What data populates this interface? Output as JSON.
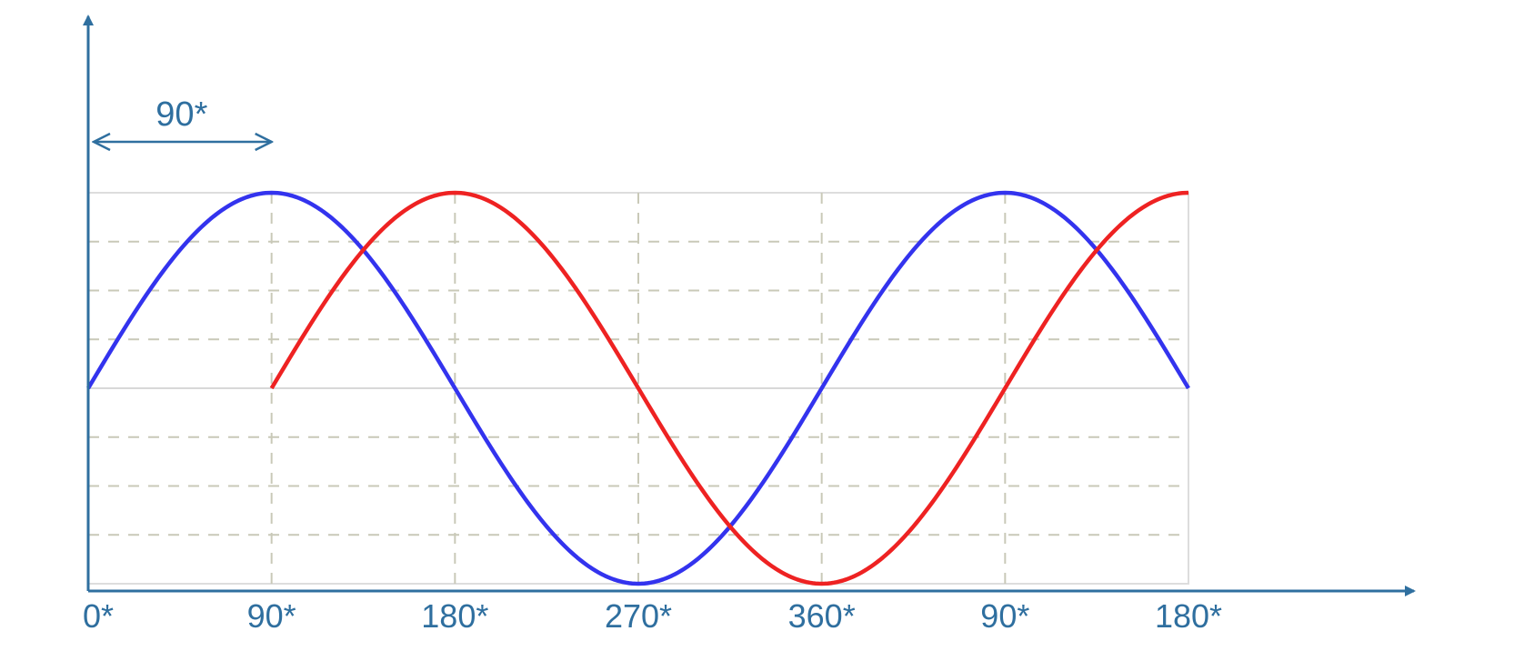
{
  "chart_data": {
    "type": "line",
    "title": "",
    "xlabel": "",
    "ylabel": "",
    "x_unit": "degrees",
    "x_tick_labels": [
      "0*",
      "90*",
      "180*",
      "270*",
      "360*",
      "90*",
      "180*"
    ],
    "xlim": [
      0,
      540
    ],
    "ylim": [
      -1,
      1
    ],
    "grid": true,
    "legend": "none",
    "series": [
      {
        "color": "#3333ee",
        "x_range": [
          0,
          540
        ],
        "values": [
          {
            "x": 0,
            "y": 0
          },
          {
            "x": 90,
            "y": 1
          },
          {
            "x": 180,
            "y": 0
          },
          {
            "x": 270,
            "y": -1
          },
          {
            "x": 360,
            "y": 0
          },
          {
            "x": 450,
            "y": 1
          },
          {
            "x": 540,
            "y": 0
          }
        ]
      },
      {
        "color": "#ee2222",
        "x_range": [
          90,
          540
        ],
        "values": [
          {
            "x": 90,
            "y": 0
          },
          {
            "x": 180,
            "y": 1
          },
          {
            "x": 270,
            "y": 0
          },
          {
            "x": 360,
            "y": -1
          },
          {
            "x": 450,
            "y": 0
          },
          {
            "x": 540,
            "y": 1
          }
        ]
      }
    ],
    "annotations": [
      {
        "text": "90*",
        "from_x": 0,
        "to_x": 90,
        "type": "double-arrow"
      }
    ],
    "axis_color": "#2f6f9f",
    "grid_color": "#c9c9b8"
  }
}
